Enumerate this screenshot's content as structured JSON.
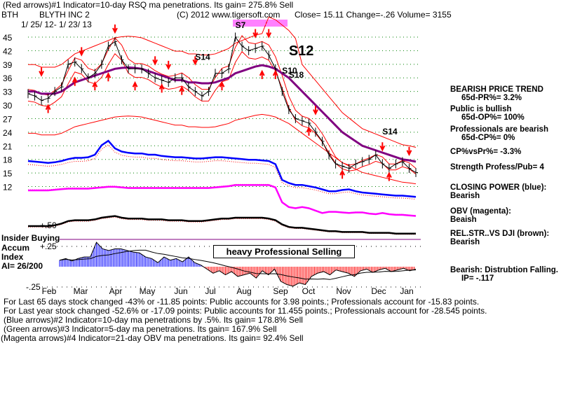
{
  "header": {
    "line1": "(Red arrows)#1 Indicator=10-day RSQ ma penetrations. Its gain= 275.8% Sell",
    "ticker": "BTH",
    "company": "BLYTH INC 2",
    "date_range": "1/ 25/ 12- 1/ 23/ 13",
    "copyright": "(C) 2012 www.tigersoft.com",
    "quote": "Close=  15.11  Change=-.26 Volume=  3155"
  },
  "right_panel": [
    "BEARISH PRICE TREND",
    "     65d-PR%= 3.2%",
    "Public is bullish",
    "     65d-OP%= 100%",
    "Professionals are bearish",
    "     65d-CP%= 0%",
    "CP%vsPr%= -3.3%",
    "Strength Profess/Pub= 4",
    "CLOSING POWER (blue):",
    "Bearish",
    "OBV (magenta):",
    "Beaish",
    "REL.STR..VS DJI (brown):",
    "Bearish",
    "Bearish: Distrubtion Falling.",
    "     IP= -.117"
  ],
  "left_panel": {
    "insider": "Insider Buying",
    "accum": "Accum",
    "index": "Index",
    "ai": "AI= 26/200",
    "plus50": "+.50",
    "plus25": "+.25",
    "minus25": "-.25"
  },
  "box_label": "heavy Professional Selling",
  "footer": [
    "For Last 65 days stock changed -43% or -11.85 points:  Public accounts for  3.98 points.;  Professionals account for -15.83 points.",
    "For Last year stock changed -52.6% or -17.09 points:  Public accounts for  11.455 points.;  Professionals account for -28.545 points.",
    "(Blue arrows)#2 Indicator=10-day ma penetrations by .5%. Its gain= 178.8% Sell",
    "(Green arrows)#3 Indicator=5-day ma penetrations. Its gain= 167.9% Sell",
    "(Magenta arrows)#4 Indicator=21-day OBV ma penetrations. Its gain= 92.4% Sell"
  ],
  "colors": {
    "price": "#000000",
    "band": "#ff0000",
    "ma": "#800080",
    "cp": "#0000ff",
    "obv": "#ff00ff",
    "rs": "#000000",
    "ai_pos": "#0000ff",
    "ai_neg": "#ff0000"
  },
  "chart_data": {
    "type": "line",
    "title": "BLYTH INC 2",
    "x_ticks": [
      "Feb",
      "Mar",
      "Apr",
      "May",
      "Jun",
      "Jul",
      "Aug",
      "Sep",
      "Oct",
      "Nov",
      "Dec",
      "Jan"
    ],
    "y_ticks": [
      45,
      42,
      39,
      36,
      33,
      30,
      27,
      24,
      21,
      18,
      15,
      12
    ],
    "ylim": [
      12,
      45
    ],
    "price": [
      32.5,
      32,
      31,
      31.5,
      33,
      34,
      39,
      39.5,
      38,
      36,
      37,
      39,
      43,
      44,
      40,
      38,
      38,
      38,
      37,
      36,
      35.5,
      35,
      36,
      36,
      34,
      33,
      32,
      33,
      37,
      37,
      38,
      45,
      43,
      42,
      42.5,
      43,
      41,
      38,
      33,
      29,
      27,
      26.5,
      26,
      24,
      22,
      19,
      17,
      16.5,
      16,
      17,
      17.5,
      18,
      19,
      17,
      16,
      17,
      17.5,
      16,
      15.1
    ],
    "ma": [
      33,
      33,
      32.5,
      32.5,
      32.5,
      33,
      34,
      35,
      35.5,
      36,
      36.5,
      37,
      37.5,
      38,
      38.2,
      38.3,
      38.2,
      38,
      37.5,
      37,
      36.5,
      36,
      35.5,
      35.5,
      35,
      35,
      34.8,
      34.8,
      35,
      35.5,
      36,
      37,
      37.5,
      38,
      38.5,
      38.8,
      38.5,
      38,
      37,
      36,
      34.5,
      33,
      31.5,
      30,
      28.5,
      27,
      25.5,
      24,
      23,
      22,
      21,
      20.5,
      20,
      19.5,
      19,
      18.5,
      18,
      17.8,
      17.5
    ],
    "cp": [
      18,
      17.9,
      17.8,
      17.7,
      17.8,
      18,
      18.3,
      18.5,
      18.5,
      18.6,
      19,
      20.5,
      21.2,
      20,
      19.5,
      19.3,
      19.2,
      19.2,
      19,
      19,
      18.8,
      18.7,
      18.6,
      18.6,
      18.5,
      18.4,
      18.4,
      18.5,
      18.6,
      18.6,
      18.5,
      18.4,
      18.3,
      18.2,
      18.2,
      18.1,
      18,
      17.5,
      15,
      14.5,
      14.2,
      14.2,
      14,
      13.8,
      13.5,
      13.2,
      13.2,
      13.4,
      13.5,
      13.2,
      13,
      12.9,
      12.8,
      12.7,
      12.6,
      12.5,
      12.5,
      12.4,
      12.3
    ],
    "obv": [
      11,
      11,
      11,
      11,
      11.1,
      11.2,
      11.3,
      11.3,
      11.3,
      11.3,
      11.4,
      11.5,
      11.6,
      11.6,
      11.5,
      11.4,
      11.4,
      11.4,
      11.4,
      11.4,
      11.4,
      11.4,
      11.4,
      11.4,
      11.4,
      11.4,
      11.4,
      11.4,
      11.5,
      11.6,
      11.7,
      11.9,
      11.9,
      11.9,
      11.9,
      11.9,
      11.9,
      11.5,
      9,
      8.2,
      8,
      8.2,
      8,
      7.6,
      7.2,
      7.4,
      7.4,
      7.3,
      7.2,
      7.3,
      7.3,
      7.1,
      7,
      7.2,
      7,
      6.9,
      6.9,
      6.8,
      6.7
    ],
    "rs": [
      0.5,
      0.5,
      0.5,
      0.5,
      0.51,
      0.53,
      0.56,
      0.57,
      0.57,
      0.57,
      0.58,
      0.6,
      0.61,
      0.62,
      0.6,
      0.59,
      0.59,
      0.59,
      0.58,
      0.58,
      0.58,
      0.57,
      0.57,
      0.57,
      0.56,
      0.56,
      0.56,
      0.57,
      0.58,
      0.59,
      0.59,
      0.6,
      0.6,
      0.6,
      0.6,
      0.6,
      0.59,
      0.57,
      0.52,
      0.49,
      0.48,
      0.48,
      0.47,
      0.46,
      0.45,
      0.44,
      0.44,
      0.43,
      0.43,
      0.43,
      0.43,
      0.42,
      0.42,
      0.42,
      0.42,
      0.41,
      0.41,
      0.41,
      0.41
    ],
    "accum_index": [
      0.08,
      0.1,
      0.07,
      0.1,
      0.12,
      0.12,
      0.3,
      0.22,
      0.2,
      0.22,
      0.22,
      0.2,
      0.18,
      0.17,
      0.12,
      0.1,
      0.05,
      0.12,
      0.08,
      0.1,
      0.06,
      0.12,
      0.05,
      0.02,
      -0.03,
      -0.08,
      -0.05,
      -0.1,
      -0.06,
      -0.12,
      -0.1,
      -0.08,
      -0.14,
      -0.05,
      -0.1,
      -0.03,
      -0.18,
      -0.22,
      -0.24,
      -0.2,
      -0.22,
      -0.12,
      -0.08,
      -0.06,
      -0.1,
      -0.04,
      -0.06,
      -0.08,
      -0.12,
      -0.05,
      -0.03,
      -0.07,
      -0.04,
      -0.02,
      -0.06,
      -0.04,
      -0.02,
      -0.05,
      -0.03
    ],
    "annotations": [
      {
        "label": "S14",
        "index": 25,
        "price": 40
      },
      {
        "label": "S7",
        "index": 31,
        "price": 47
      },
      {
        "label": "S12",
        "index": 39,
        "price": 41
      },
      {
        "label": "S10",
        "index": 38,
        "price": 37
      },
      {
        "label": "S18",
        "index": 39,
        "price": 36
      },
      {
        "label": "S14",
        "index": 53,
        "price": 23.5
      }
    ],
    "arrows": [
      {
        "index": 2,
        "dir": "down",
        "price": 37.5
      },
      {
        "index": 3,
        "dir": "up",
        "price": 29
      },
      {
        "index": 7,
        "dir": "up",
        "price": 35
      },
      {
        "index": 8,
        "dir": "down",
        "price": 42
      },
      {
        "index": 10,
        "dir": "up",
        "price": 34
      },
      {
        "index": 12,
        "dir": "up",
        "price": 36
      },
      {
        "index": 13,
        "dir": "down",
        "price": 47
      },
      {
        "index": 16,
        "dir": "up",
        "price": 34
      },
      {
        "index": 19,
        "dir": "down",
        "price": 40
      },
      {
        "index": 20,
        "dir": "up",
        "price": 33.5
      },
      {
        "index": 21,
        "dir": "down",
        "price": 39
      },
      {
        "index": 23,
        "dir": "up",
        "price": 33
      },
      {
        "index": 25,
        "dir": "down",
        "price": 40
      },
      {
        "index": 29,
        "dir": "up",
        "price": 34
      },
      {
        "index": 34,
        "dir": "down",
        "price": 46
      },
      {
        "index": 36,
        "dir": "down",
        "price": 46
      },
      {
        "index": 35,
        "dir": "up",
        "price": 36.5
      },
      {
        "index": 37,
        "dir": "up",
        "price": 36.5
      },
      {
        "index": 42,
        "dir": "up",
        "price": 24
      },
      {
        "index": 43,
        "dir": "down",
        "price": 29
      },
      {
        "index": 47,
        "dir": "up",
        "price": 14.5
      },
      {
        "index": 53,
        "dir": "down",
        "price": 21
      },
      {
        "index": 54,
        "dir": "up",
        "price": 14
      },
      {
        "index": 57,
        "dir": "down",
        "price": 20
      }
    ]
  }
}
